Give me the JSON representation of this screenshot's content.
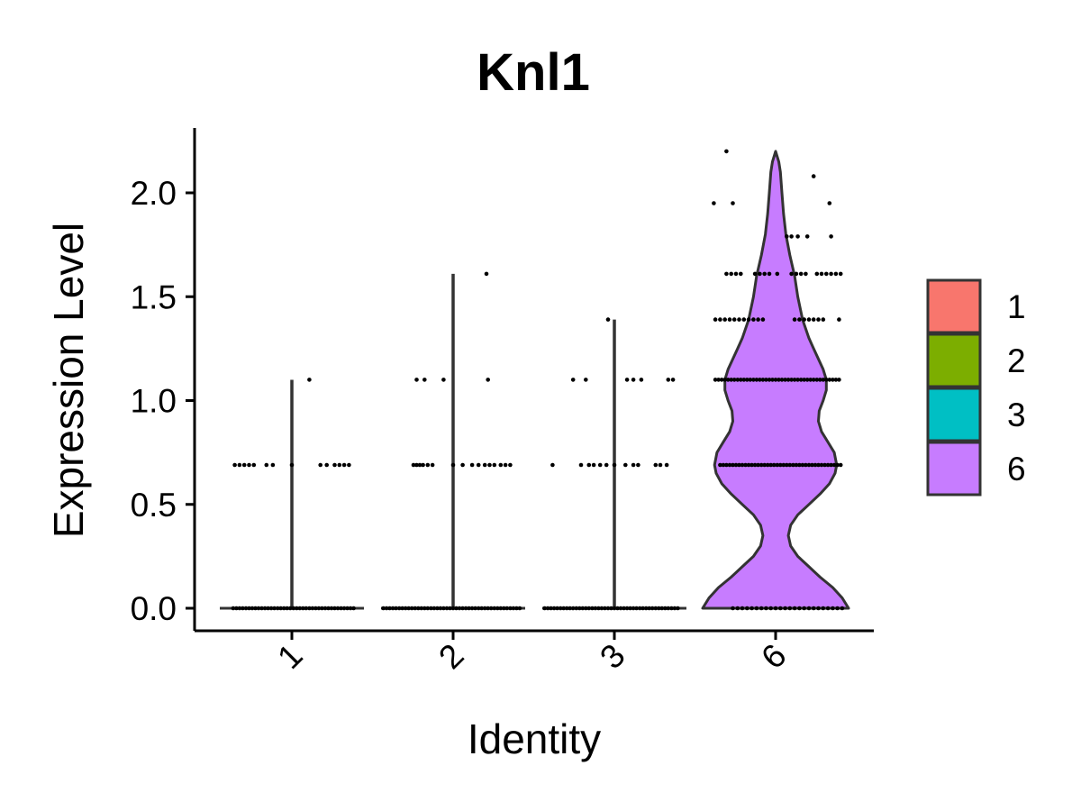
{
  "chart_data": {
    "type": "violin",
    "title": "Knl1",
    "xlabel": "Identity",
    "ylabel": "Expression Level",
    "categories": [
      "1",
      "2",
      "3",
      "6"
    ],
    "colors": {
      "1": "#F8766D",
      "2": "#7CAE00",
      "3": "#00BFC4",
      "6": "#C77CFF"
    },
    "ylim": [
      -0.12,
      2.32
    ],
    "yticks": [
      0.0,
      0.5,
      1.0,
      1.5,
      2.0
    ],
    "ytick_labels": [
      "0.0",
      "0.5",
      "1.0",
      "1.5",
      "2.0"
    ],
    "grid": false,
    "legend_position": "right",
    "legend_entries": [
      "1",
      "2",
      "3",
      "6"
    ],
    "series": [
      {
        "name": "1",
        "max": 1.1,
        "point_groups": [
          {
            "y": 0.0,
            "offsets": [
              -0.37,
              -0.35,
              -0.33,
              -0.31,
              -0.29,
              -0.27,
              -0.25,
              -0.23,
              -0.21,
              -0.19,
              -0.17,
              -0.15,
              -0.13,
              -0.11,
              -0.09,
              -0.07,
              -0.05,
              -0.03,
              -0.01,
              0.01,
              0.03,
              0.05,
              0.07,
              0.09,
              0.11,
              0.13,
              0.15,
              0.17,
              0.19,
              0.21,
              0.23,
              0.25,
              0.27,
              0.29,
              0.31,
              0.33,
              0.35,
              0.37,
              0.39
            ]
          },
          {
            "y": 0.69,
            "offsets": [
              -0.36,
              -0.33,
              -0.3,
              -0.27,
              -0.24,
              -0.16,
              -0.12,
              0.0,
              0.18,
              0.22,
              0.27,
              0.3,
              0.33,
              0.36
            ]
          },
          {
            "y": 1.1,
            "offsets": [
              0.11
            ]
          }
        ]
      },
      {
        "name": "2",
        "max": 1.61,
        "point_groups": [
          {
            "y": 0.0,
            "offsets": [
              -0.44,
              -0.42,
              -0.4,
              -0.38,
              -0.36,
              -0.34,
              -0.32,
              -0.3,
              -0.28,
              -0.26,
              -0.24,
              -0.22,
              -0.2,
              -0.18,
              -0.16,
              -0.14,
              -0.12,
              -0.1,
              -0.08,
              -0.06,
              -0.04,
              -0.02,
              0.0,
              0.02,
              0.04,
              0.06,
              0.08,
              0.1,
              0.12,
              0.14,
              0.16,
              0.18,
              0.2,
              0.22,
              0.24,
              0.26,
              0.28,
              0.3,
              0.32,
              0.34,
              0.36,
              0.38,
              0.4,
              0.42
            ]
          },
          {
            "y": 0.69,
            "offsets": [
              -0.25,
              -0.23,
              -0.21,
              -0.19,
              -0.16,
              -0.13,
              0.0,
              0.06,
              0.12,
              0.16,
              0.2,
              0.23,
              0.26,
              0.3,
              0.33,
              0.36
            ]
          },
          {
            "y": 1.1,
            "offsets": [
              -0.23,
              -0.18,
              -0.06,
              0.22
            ]
          },
          {
            "y": 1.61,
            "offsets": [
              0.21
            ]
          }
        ]
      },
      {
        "name": "3",
        "max": 1.39,
        "point_groups": [
          {
            "y": 0.0,
            "offsets": [
              -0.44,
              -0.42,
              -0.4,
              -0.38,
              -0.36,
              -0.34,
              -0.32,
              -0.3,
              -0.28,
              -0.26,
              -0.24,
              -0.22,
              -0.2,
              -0.18,
              -0.16,
              -0.14,
              -0.12,
              -0.1,
              -0.08,
              -0.06,
              -0.04,
              -0.02,
              0.0,
              0.02,
              0.04,
              0.06,
              0.08,
              0.1,
              0.12,
              0.14,
              0.16,
              0.18,
              0.2,
              0.22,
              0.24,
              0.26,
              0.28,
              0.3,
              0.32,
              0.34,
              0.36,
              0.38,
              0.4
            ]
          },
          {
            "y": 0.69,
            "offsets": [
              -0.39,
              -0.21,
              -0.16,
              -0.13,
              -0.09,
              -0.05,
              0.0,
              0.07,
              0.12,
              0.15,
              0.26,
              0.29,
              0.33
            ]
          },
          {
            "y": 1.1,
            "offsets": [
              -0.26,
              -0.18,
              0.08,
              0.12,
              0.17,
              0.34,
              0.37
            ]
          },
          {
            "y": 1.39,
            "offsets": [
              -0.04
            ]
          }
        ]
      },
      {
        "name": "6",
        "max": 2.2,
        "point_groups": [
          {
            "y": 0.0,
            "offsets": [
              -0.27,
              -0.24,
              -0.21,
              -0.18,
              -0.15,
              -0.12,
              -0.09,
              -0.06,
              -0.03,
              0.0,
              0.03,
              0.06,
              0.09,
              0.12,
              0.15,
              0.18,
              0.21,
              0.24,
              0.27,
              0.3,
              0.33,
              0.36,
              0.39,
              0.42
            ]
          },
          {
            "y": 0.69,
            "offsets": [
              -0.35,
              -0.33,
              -0.31,
              -0.29,
              -0.27,
              -0.25,
              -0.23,
              -0.21,
              -0.19,
              -0.17,
              -0.15,
              -0.13,
              -0.11,
              -0.09,
              -0.07,
              -0.05,
              -0.03,
              -0.01,
              0.01,
              0.03,
              0.05,
              0.07,
              0.09,
              0.11,
              0.13,
              0.15,
              0.17,
              0.19,
              0.21,
              0.23,
              0.25,
              0.27,
              0.29,
              0.31,
              0.33,
              0.35,
              0.37,
              0.39,
              0.41
            ]
          },
          {
            "y": 1.1,
            "offsets": [
              -0.38,
              -0.36,
              -0.34,
              -0.32,
              -0.3,
              -0.28,
              -0.26,
              -0.24,
              -0.22,
              -0.2,
              -0.18,
              -0.16,
              -0.14,
              -0.12,
              -0.1,
              -0.08,
              -0.06,
              -0.04,
              -0.02,
              0.0,
              0.02,
              0.04,
              0.06,
              0.08,
              0.1,
              0.12,
              0.14,
              0.16,
              0.18,
              0.2,
              0.22,
              0.24,
              0.26,
              0.28,
              0.3,
              0.32,
              0.34,
              0.36,
              0.38,
              0.4
            ]
          },
          {
            "y": 1.39,
            "offsets": [
              -0.38,
              -0.35,
              -0.32,
              -0.29,
              -0.26,
              -0.23,
              -0.2,
              -0.17,
              -0.14,
              -0.11,
              -0.08,
              0.12,
              0.15,
              0.18,
              0.21,
              0.24,
              0.27,
              0.3,
              0.4
            ]
          },
          {
            "y": 1.61,
            "offsets": [
              -0.31,
              -0.28,
              -0.25,
              -0.22,
              -0.13,
              -0.1,
              -0.07,
              -0.04,
              0.01,
              0.1,
              0.13,
              0.16,
              0.19,
              0.26,
              0.29,
              0.32,
              0.35,
              0.38,
              0.41
            ]
          },
          {
            "y": 1.79,
            "offsets": [
              0.07,
              0.1,
              0.14,
              0.2,
              0.35
            ]
          },
          {
            "y": 1.95,
            "offsets": [
              -0.39,
              -0.27,
              0.34
            ]
          },
          {
            "y": 2.08,
            "offsets": [
              0.24
            ]
          },
          {
            "y": 2.2,
            "offsets": [
              -0.31
            ]
          }
        ]
      }
    ],
    "violin_6_profile": [
      [
        0.0,
        0.46
      ],
      [
        0.05,
        0.42
      ],
      [
        0.1,
        0.36
      ],
      [
        0.15,
        0.28
      ],
      [
        0.2,
        0.21
      ],
      [
        0.25,
        0.14
      ],
      [
        0.3,
        0.095
      ],
      [
        0.35,
        0.08
      ],
      [
        0.4,
        0.095
      ],
      [
        0.45,
        0.14
      ],
      [
        0.5,
        0.21
      ],
      [
        0.55,
        0.28
      ],
      [
        0.6,
        0.34
      ],
      [
        0.65,
        0.375
      ],
      [
        0.69,
        0.385
      ],
      [
        0.75,
        0.37
      ],
      [
        0.8,
        0.33
      ],
      [
        0.85,
        0.29
      ],
      [
        0.9,
        0.27
      ],
      [
        0.95,
        0.275
      ],
      [
        1.0,
        0.3
      ],
      [
        1.05,
        0.32
      ],
      [
        1.1,
        0.32
      ],
      [
        1.15,
        0.3
      ],
      [
        1.2,
        0.27
      ],
      [
        1.25,
        0.24
      ],
      [
        1.3,
        0.21
      ],
      [
        1.39,
        0.17
      ],
      [
        1.5,
        0.14
      ],
      [
        1.6,
        0.12
      ],
      [
        1.7,
        0.09
      ],
      [
        1.8,
        0.065
      ],
      [
        1.9,
        0.05
      ],
      [
        2.0,
        0.04
      ],
      [
        2.1,
        0.03
      ],
      [
        2.15,
        0.02
      ],
      [
        2.2,
        0.0
      ]
    ]
  }
}
